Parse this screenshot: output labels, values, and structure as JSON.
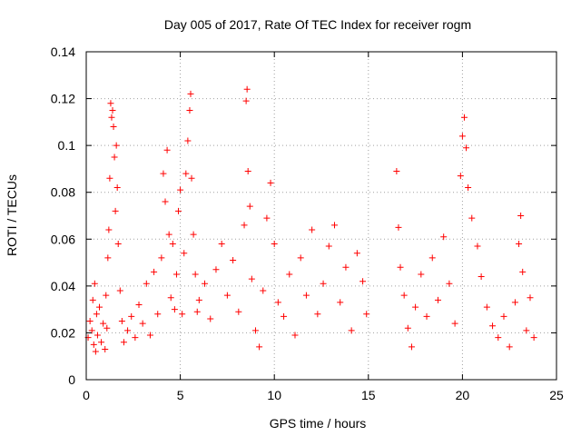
{
  "chart_data": {
    "type": "scatter",
    "title": "Day 005 of 2017, Rate Of TEC Index for receiver rogm",
    "xlabel": "GPS time / hours",
    "ylabel": "ROTI / TECUs",
    "xlim": [
      0,
      25
    ],
    "ylim": [
      0,
      0.14
    ],
    "xticks": [
      0,
      5,
      10,
      15,
      20,
      25
    ],
    "yticks": [
      0,
      0.02,
      0.04,
      0.06,
      0.08,
      0.1,
      0.12,
      0.14
    ],
    "xtick_labels": [
      "0",
      "5",
      "10",
      "15",
      "20",
      "25"
    ],
    "ytick_labels": [
      "0",
      "0.02",
      "0.04",
      "0.06",
      "0.08",
      "0.1",
      "0.12",
      "0.14"
    ],
    "grid": true,
    "marker": "plus",
    "color": "#ff0000",
    "series": [
      {
        "points": [
          [
            0.1,
            0.018
          ],
          [
            0.2,
            0.025
          ],
          [
            0.3,
            0.021
          ],
          [
            0.35,
            0.034
          ],
          [
            0.4,
            0.015
          ],
          [
            0.45,
            0.041
          ],
          [
            0.5,
            0.012
          ],
          [
            0.55,
            0.028
          ],
          [
            0.6,
            0.019
          ],
          [
            0.7,
            0.031
          ],
          [
            0.8,
            0.016
          ],
          [
            0.9,
            0.024
          ],
          [
            1.0,
            0.013
          ],
          [
            1.05,
            0.036
          ],
          [
            1.1,
            0.022
          ],
          [
            1.15,
            0.052
          ],
          [
            1.2,
            0.064
          ],
          [
            1.25,
            0.086
          ],
          [
            1.3,
            0.118
          ],
          [
            1.35,
            0.112
          ],
          [
            1.4,
            0.115
          ],
          [
            1.45,
            0.108
          ],
          [
            1.5,
            0.095
          ],
          [
            1.55,
            0.072
          ],
          [
            1.6,
            0.1
          ],
          [
            1.65,
            0.082
          ],
          [
            1.7,
            0.058
          ],
          [
            1.8,
            0.038
          ],
          [
            1.9,
            0.025
          ],
          [
            2.0,
            0.016
          ],
          [
            2.2,
            0.021
          ],
          [
            2.4,
            0.027
          ],
          [
            2.6,
            0.018
          ],
          [
            2.8,
            0.032
          ],
          [
            3.0,
            0.024
          ],
          [
            3.2,
            0.041
          ],
          [
            3.4,
            0.019
          ],
          [
            3.6,
            0.046
          ],
          [
            3.8,
            0.028
          ],
          [
            4.0,
            0.052
          ],
          [
            4.1,
            0.088
          ],
          [
            4.2,
            0.076
          ],
          [
            4.3,
            0.098
          ],
          [
            4.4,
            0.062
          ],
          [
            4.5,
            0.035
          ],
          [
            4.6,
            0.058
          ],
          [
            4.7,
            0.03
          ],
          [
            4.8,
            0.045
          ],
          [
            4.9,
            0.072
          ],
          [
            5.0,
            0.081
          ],
          [
            5.1,
            0.028
          ],
          [
            5.2,
            0.054
          ],
          [
            5.3,
            0.088
          ],
          [
            5.4,
            0.102
          ],
          [
            5.5,
            0.115
          ],
          [
            5.55,
            0.122
          ],
          [
            5.6,
            0.086
          ],
          [
            5.7,
            0.062
          ],
          [
            5.8,
            0.045
          ],
          [
            5.9,
            0.029
          ],
          [
            6.0,
            0.034
          ],
          [
            6.3,
            0.041
          ],
          [
            6.6,
            0.026
          ],
          [
            6.9,
            0.047
          ],
          [
            7.2,
            0.058
          ],
          [
            7.5,
            0.036
          ],
          [
            7.8,
            0.051
          ],
          [
            8.1,
            0.029
          ],
          [
            8.4,
            0.066
          ],
          [
            8.5,
            0.119
          ],
          [
            8.55,
            0.124
          ],
          [
            8.6,
            0.089
          ],
          [
            8.7,
            0.074
          ],
          [
            8.8,
            0.043
          ],
          [
            9.0,
            0.021
          ],
          [
            9.2,
            0.014
          ],
          [
            9.4,
            0.038
          ],
          [
            9.6,
            0.069
          ],
          [
            9.8,
            0.084
          ],
          [
            10.0,
            0.058
          ],
          [
            10.2,
            0.033
          ],
          [
            10.5,
            0.027
          ],
          [
            10.8,
            0.045
          ],
          [
            11.1,
            0.019
          ],
          [
            11.4,
            0.052
          ],
          [
            11.7,
            0.036
          ],
          [
            12.0,
            0.064
          ],
          [
            12.3,
            0.028
          ],
          [
            12.6,
            0.041
          ],
          [
            12.9,
            0.057
          ],
          [
            13.2,
            0.066
          ],
          [
            13.5,
            0.033
          ],
          [
            13.8,
            0.048
          ],
          [
            14.1,
            0.021
          ],
          [
            14.4,
            0.054
          ],
          [
            14.7,
            0.042
          ],
          [
            14.9,
            0.028
          ],
          [
            16.5,
            0.089
          ],
          [
            16.6,
            0.065
          ],
          [
            16.7,
            0.048
          ],
          [
            16.9,
            0.036
          ],
          [
            17.1,
            0.022
          ],
          [
            17.3,
            0.014
          ],
          [
            17.5,
            0.031
          ],
          [
            17.8,
            0.045
          ],
          [
            18.1,
            0.027
          ],
          [
            18.4,
            0.052
          ],
          [
            18.7,
            0.034
          ],
          [
            19.0,
            0.061
          ],
          [
            19.3,
            0.041
          ],
          [
            19.6,
            0.024
          ],
          [
            19.9,
            0.087
          ],
          [
            20.0,
            0.104
          ],
          [
            20.1,
            0.112
          ],
          [
            20.2,
            0.099
          ],
          [
            20.3,
            0.082
          ],
          [
            20.5,
            0.069
          ],
          [
            20.8,
            0.057
          ],
          [
            21.0,
            0.044
          ],
          [
            21.3,
            0.031
          ],
          [
            21.6,
            0.023
          ],
          [
            21.9,
            0.018
          ],
          [
            22.2,
            0.027
          ],
          [
            22.5,
            0.014
          ],
          [
            22.8,
            0.033
          ],
          [
            23.0,
            0.058
          ],
          [
            23.1,
            0.07
          ],
          [
            23.2,
            0.046
          ],
          [
            23.4,
            0.021
          ],
          [
            23.6,
            0.035
          ],
          [
            23.8,
            0.018
          ]
        ]
      }
    ]
  }
}
